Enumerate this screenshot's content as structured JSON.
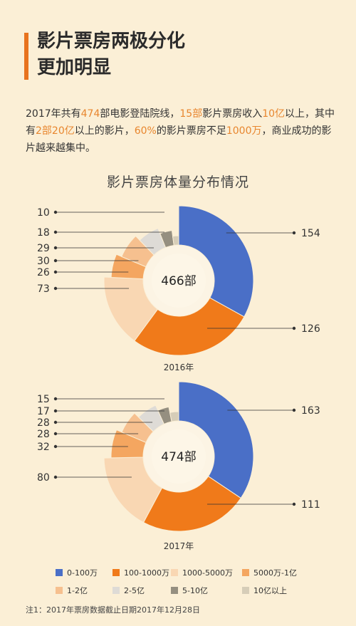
{
  "header": {
    "title_line1": "影片票房两极分化",
    "title_line2": "更加明显"
  },
  "intro": {
    "parts": [
      {
        "text": "2017年共有",
        "hl": false
      },
      {
        "text": "474",
        "hl": true
      },
      {
        "text": "部电影登陆院线，",
        "hl": false
      },
      {
        "text": "15部",
        "hl": true
      },
      {
        "text": "影片票房收入",
        "hl": false
      },
      {
        "text": "10亿",
        "hl": true
      },
      {
        "text": "以上，其中有",
        "hl": false
      },
      {
        "text": "2部20亿",
        "hl": true
      },
      {
        "text": "以上的影片，",
        "hl": false
      },
      {
        "text": "60%",
        "hl": true
      },
      {
        "text": "的影片票房不足",
        "hl": false
      },
      {
        "text": "1000万",
        "hl": true
      },
      {
        "text": "，商业成功的影片越来越集中。",
        "hl": false
      }
    ]
  },
  "chart_title": "影片票房体量分布情况",
  "note": "注1：2017年票房数据截止日期2017年12月28日",
  "chart_data": [
    {
      "type": "pie",
      "year_label": "2016年",
      "center_label": "466部",
      "categories": [
        "0-100万",
        "100-1000万",
        "1000-5000万",
        "5000万-1亿",
        "1-2亿",
        "2-5亿",
        "5-10亿",
        "10亿以上"
      ],
      "values": [
        154,
        126,
        73,
        26,
        30,
        29,
        18,
        10
      ]
    },
    {
      "type": "pie",
      "year_label": "2017年",
      "center_label": "474部",
      "categories": [
        "0-100万",
        "100-1000万",
        "1000-5000万",
        "5000万-1亿",
        "1-2亿",
        "2-5亿",
        "5-10亿",
        "10亿以上"
      ],
      "values": [
        163,
        111,
        80,
        32,
        28,
        28,
        17,
        15
      ]
    }
  ],
  "legend": [
    {
      "label": "0-100万",
      "color": "#4a6fc7"
    },
    {
      "label": "100-1000万",
      "color": "#f07a1a"
    },
    {
      "label": "1000-5000万",
      "color": "#f9d7b3"
    },
    {
      "label": "5000万-1亿",
      "color": "#f4a660"
    },
    {
      "label": "1-2亿",
      "color": "#f6c08f"
    },
    {
      "label": "2-5亿",
      "color": "#dedbd6"
    },
    {
      "label": "5-10亿",
      "color": "#958f80"
    },
    {
      "label": "10亿以上",
      "color": "#d6cdb8"
    }
  ]
}
